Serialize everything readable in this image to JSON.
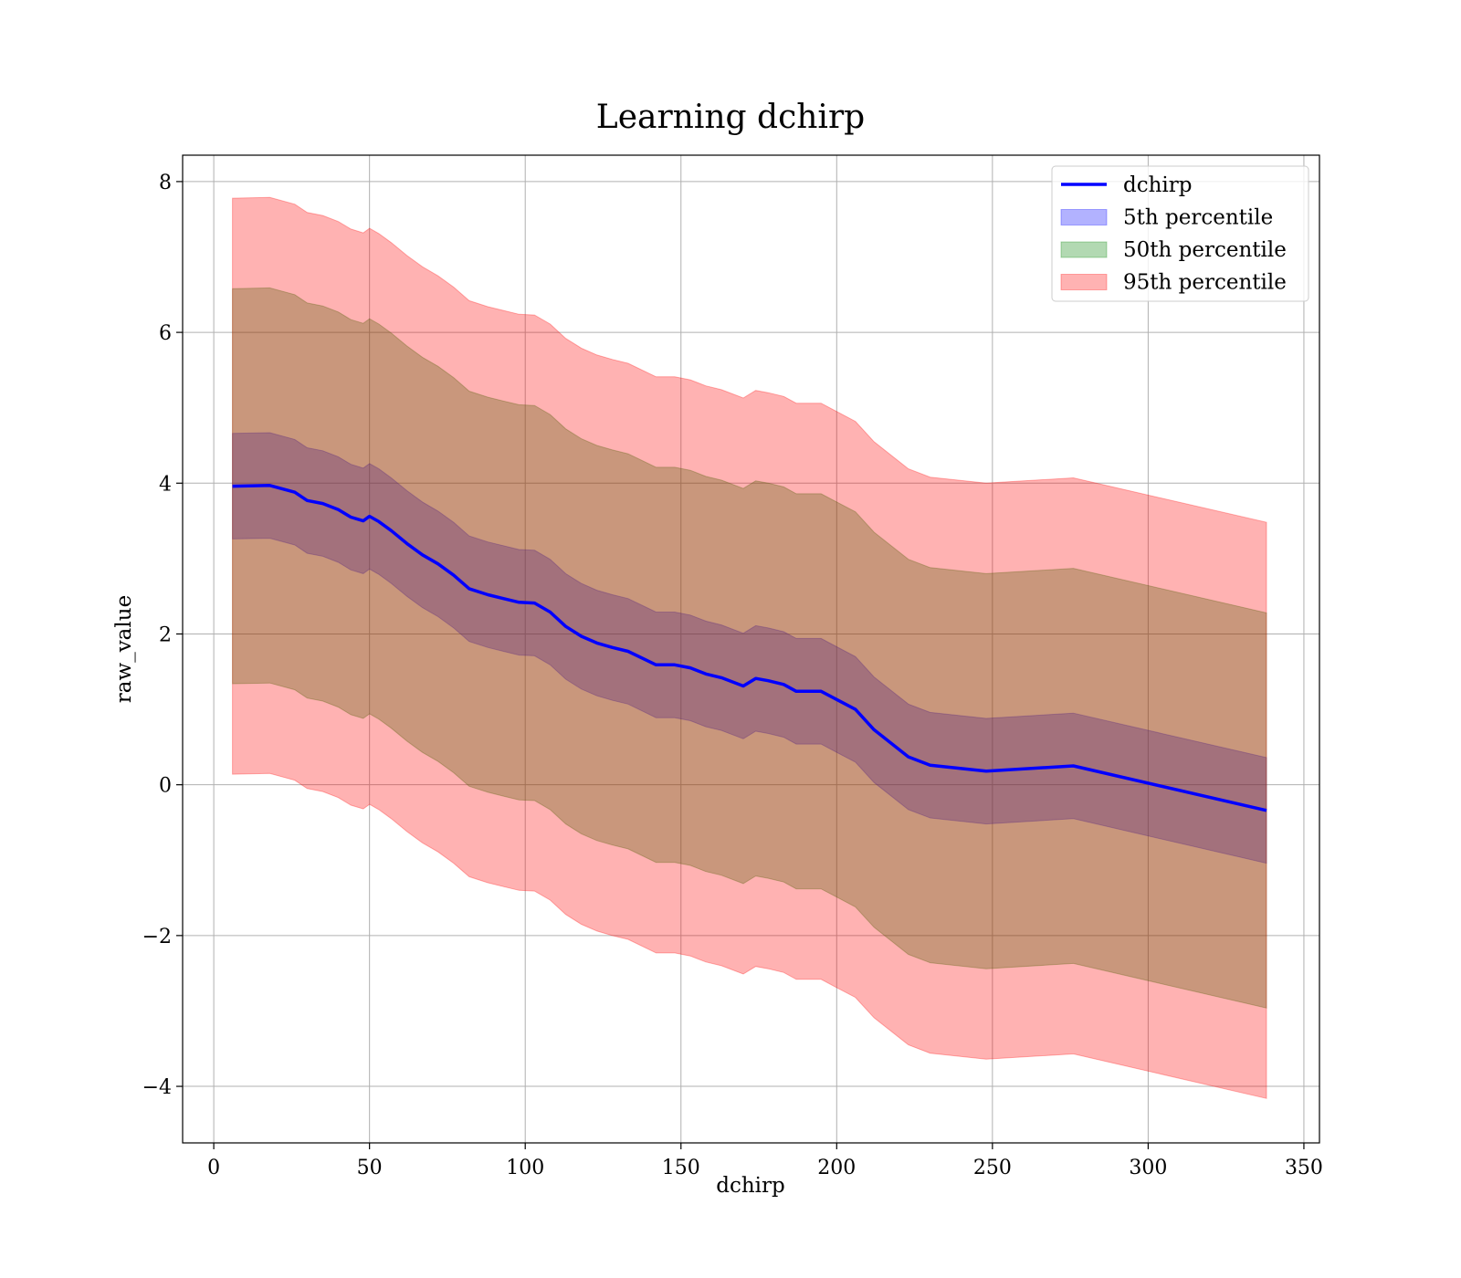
{
  "chart_data": {
    "type": "area",
    "title": "Learning dchirp",
    "xlabel": "dchirp",
    "ylabel": "raw_value",
    "xlim": [
      -10,
      355
    ],
    "ylim": [
      -4.75,
      8.35
    ],
    "xticks": [
      0,
      50,
      100,
      150,
      200,
      250,
      300,
      350
    ],
    "yticks": [
      -4,
      -2,
      0,
      2,
      4,
      6,
      8
    ],
    "xtick_labels": [
      "0",
      "50",
      "100",
      "150",
      "200",
      "250",
      "300",
      "350"
    ],
    "ytick_labels": [
      "−4",
      "−2",
      "0",
      "2",
      "4",
      "6",
      "8"
    ],
    "grid": true,
    "legend_position": "top-right",
    "x": [
      6,
      18,
      26,
      30,
      35,
      40,
      44,
      48,
      50,
      53,
      57,
      62,
      67,
      72,
      77,
      82,
      88,
      93,
      98,
      103,
      108,
      113,
      118,
      123,
      128,
      133,
      142,
      148,
      153,
      158,
      163,
      170,
      174,
      178,
      183,
      187,
      195,
      200,
      206,
      212,
      223,
      230,
      248,
      276,
      338
    ],
    "series": [
      {
        "name": "dchirp",
        "color": "#0000ff",
        "kind": "line",
        "values": [
          3.96,
          3.97,
          3.88,
          3.77,
          3.73,
          3.65,
          3.55,
          3.5,
          3.56,
          3.49,
          3.37,
          3.2,
          3.05,
          2.93,
          2.78,
          2.6,
          2.52,
          2.47,
          2.42,
          2.41,
          2.29,
          2.1,
          1.97,
          1.88,
          1.82,
          1.77,
          1.59,
          1.59,
          1.55,
          1.47,
          1.42,
          1.31,
          1.41,
          1.38,
          1.33,
          1.24,
          1.24,
          1.13,
          1.0,
          0.73,
          0.37,
          0.26,
          0.18,
          0.25,
          -0.34
        ]
      },
      {
        "name": "5th percentile",
        "color": "#0000ff",
        "kind": "band",
        "lower": [
          3.26,
          3.27,
          3.18,
          3.07,
          3.03,
          2.95,
          2.85,
          2.8,
          2.86,
          2.79,
          2.67,
          2.5,
          2.35,
          2.23,
          2.08,
          1.9,
          1.82,
          1.77,
          1.72,
          1.71,
          1.59,
          1.4,
          1.27,
          1.18,
          1.12,
          1.07,
          0.89,
          0.89,
          0.85,
          0.77,
          0.72,
          0.61,
          0.71,
          0.68,
          0.63,
          0.54,
          0.54,
          0.43,
          0.3,
          0.03,
          -0.33,
          -0.44,
          -0.52,
          -0.45,
          -1.04
        ],
        "upper": [
          4.66,
          4.67,
          4.58,
          4.47,
          4.43,
          4.35,
          4.25,
          4.2,
          4.26,
          4.19,
          4.07,
          3.9,
          3.75,
          3.63,
          3.48,
          3.3,
          3.22,
          3.17,
          3.12,
          3.11,
          2.99,
          2.8,
          2.67,
          2.58,
          2.52,
          2.47,
          2.29,
          2.29,
          2.25,
          2.17,
          2.12,
          2.01,
          2.11,
          2.08,
          2.03,
          1.94,
          1.94,
          1.83,
          1.7,
          1.43,
          1.07,
          0.96,
          0.88,
          0.95,
          0.36
        ]
      },
      {
        "name": "50th percentile",
        "color": "#008000",
        "kind": "band",
        "lower": [
          1.34,
          1.35,
          1.26,
          1.15,
          1.11,
          1.03,
          0.93,
          0.88,
          0.94,
          0.87,
          0.75,
          0.58,
          0.43,
          0.31,
          0.16,
          -0.02,
          -0.1,
          -0.15,
          -0.2,
          -0.21,
          -0.33,
          -0.52,
          -0.65,
          -0.74,
          -0.8,
          -0.85,
          -1.03,
          -1.03,
          -1.07,
          -1.15,
          -1.2,
          -1.31,
          -1.21,
          -1.24,
          -1.29,
          -1.38,
          -1.38,
          -1.49,
          -1.62,
          -1.89,
          -2.25,
          -2.36,
          -2.44,
          -2.37,
          -2.96
        ],
        "upper": [
          6.58,
          6.59,
          6.5,
          6.39,
          6.35,
          6.27,
          6.17,
          6.12,
          6.18,
          6.11,
          5.99,
          5.82,
          5.67,
          5.55,
          5.4,
          5.22,
          5.14,
          5.09,
          5.04,
          5.03,
          4.91,
          4.72,
          4.59,
          4.5,
          4.44,
          4.39,
          4.21,
          4.21,
          4.17,
          4.09,
          4.04,
          3.93,
          4.03,
          4.0,
          3.95,
          3.86,
          3.86,
          3.75,
          3.62,
          3.35,
          2.99,
          2.88,
          2.8,
          2.87,
          2.28
        ]
      },
      {
        "name": "95th percentile",
        "color": "#ff0000",
        "kind": "band",
        "lower": [
          0.14,
          0.15,
          0.06,
          -0.05,
          -0.09,
          -0.17,
          -0.27,
          -0.32,
          -0.26,
          -0.33,
          -0.45,
          -0.62,
          -0.77,
          -0.89,
          -1.04,
          -1.22,
          -1.3,
          -1.35,
          -1.4,
          -1.41,
          -1.53,
          -1.72,
          -1.85,
          -1.94,
          -2.0,
          -2.05,
          -2.23,
          -2.23,
          -2.27,
          -2.35,
          -2.4,
          -2.51,
          -2.41,
          -2.44,
          -2.49,
          -2.58,
          -2.58,
          -2.69,
          -2.82,
          -3.09,
          -3.45,
          -3.56,
          -3.64,
          -3.57,
          -4.16
        ],
        "upper": [
          7.78,
          7.79,
          7.7,
          7.59,
          7.55,
          7.47,
          7.37,
          7.32,
          7.38,
          7.31,
          7.19,
          7.02,
          6.87,
          6.75,
          6.6,
          6.42,
          6.34,
          6.29,
          6.24,
          6.23,
          6.11,
          5.92,
          5.79,
          5.7,
          5.64,
          5.59,
          5.41,
          5.41,
          5.37,
          5.29,
          5.24,
          5.13,
          5.23,
          5.2,
          5.15,
          5.06,
          5.06,
          4.95,
          4.82,
          4.55,
          4.19,
          4.08,
          4.0,
          4.07,
          3.48
        ]
      }
    ]
  }
}
